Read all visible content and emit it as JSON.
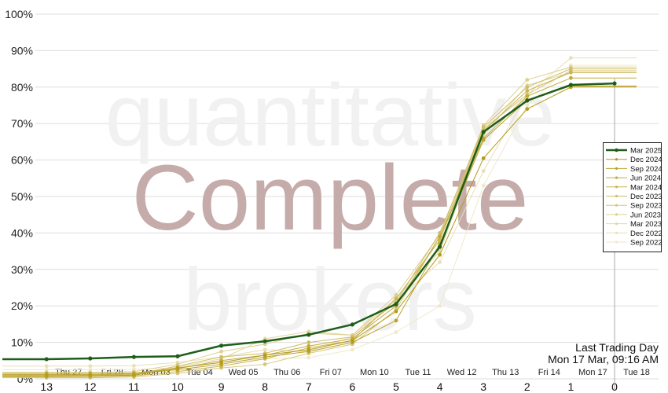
{
  "watermark": {
    "line1": "quantitative",
    "line2": "Complete",
    "line3": "brokers"
  },
  "annotation": {
    "line1": "Last Trading Day",
    "line2": "Mon 17 Mar, 09:16 AM"
  },
  "chart_data": {
    "type": "line",
    "title": "",
    "xlabel": "",
    "ylabel": "",
    "ylim": [
      0,
      100
    ],
    "yticks": [
      "0%",
      "10%",
      "20%",
      "30%",
      "40%",
      "50%",
      "60%",
      "70%",
      "80%",
      "90%",
      "100%"
    ],
    "x": [
      13,
      12,
      11,
      10,
      9,
      8,
      7,
      6,
      5,
      4,
      3,
      2,
      1,
      0
    ],
    "xtick_labels": [
      "13",
      "12",
      "11",
      "10",
      "9",
      "8",
      "7",
      "6",
      "5",
      "4",
      "3",
      "2",
      "1",
      "0"
    ],
    "date_labels": [
      "Thu 27",
      "Fri 28",
      "Mon 03",
      "Tue 04",
      "Wed 05",
      "Thu 06",
      "Fri 07",
      "Mon 10",
      "Tue 11",
      "Wed 12",
      "Thu 13",
      "Fri 14",
      "Mon 17",
      "Tue 18"
    ],
    "grid": true,
    "legend": "right",
    "series": [
      {
        "name": "Mar 2025",
        "color": "#1e5e1a",
        "values": [
          5.4,
          5.6,
          6.0,
          6.2,
          9.1,
          10.3,
          12.1,
          14.9,
          20.5,
          36.2,
          67.7,
          76.3,
          80.6,
          81.0
        ]
      },
      {
        "name": "Dec 2024",
        "color": "#b59c1c",
        "values": [
          0.8,
          0.9,
          1.0,
          3.0,
          4.5,
          6.5,
          8.0,
          10.5,
          18.5,
          34,
          60.5,
          74,
          80,
          null
        ]
      },
      {
        "name": "Sep 2024",
        "color": "#bba32a",
        "values": [
          1.2,
          1.2,
          1.4,
          2.5,
          4.0,
          6.0,
          7.5,
          10.0,
          16,
          37,
          65.5,
          76.5,
          80.3,
          null
        ]
      },
      {
        "name": "Jun 2024",
        "color": "#c2ab3c",
        "values": [
          1.5,
          1.5,
          1.6,
          2.8,
          5.0,
          6.5,
          9.0,
          11.0,
          20,
          39,
          66,
          77.5,
          82.5,
          null
        ]
      },
      {
        "name": "Mar 2024",
        "color": "#c9b552",
        "values": [
          0.5,
          0.5,
          0.8,
          2.0,
          3.5,
          5.5,
          8.5,
          10.5,
          22,
          38,
          68,
          79,
          84,
          null
        ]
      },
      {
        "name": "Dec 2023",
        "color": "#cfbd66",
        "values": [
          1.0,
          1.0,
          1.2,
          3.5,
          6.0,
          7.0,
          10.0,
          11.5,
          21,
          40,
          69,
          80,
          85,
          null
        ]
      },
      {
        "name": "Sep 2023",
        "color": "#d6c77c",
        "values": [
          0.3,
          0.3,
          0.5,
          1.5,
          3.0,
          4.0,
          7.0,
          9.5,
          19,
          39,
          68.5,
          78,
          84.5,
          null
        ]
      },
      {
        "name": "Jun 2023",
        "color": "#ddd090",
        "values": [
          1.8,
          1.8,
          2.0,
          4.0,
          7.5,
          9.5,
          12.5,
          12,
          23,
          39.5,
          69.5,
          82,
          85.5,
          null
        ]
      },
      {
        "name": "Mar 2023",
        "color": "#e3d8a4",
        "values": [
          0.7,
          0.8,
          1.0,
          3.2,
          5.5,
          11,
          13,
          12,
          22,
          35,
          67,
          80.5,
          84,
          null
        ]
      },
      {
        "name": "Dec 2022",
        "color": "#e9e0b8",
        "values": [
          3.5,
          3.5,
          3.6,
          4.5,
          6,
          8,
          7.5,
          11.5,
          21.5,
          32,
          57,
          78,
          88,
          null
        ]
      },
      {
        "name": "Sep 2022",
        "color": "#efe9cc",
        "values": [
          2.5,
          2.5,
          2.6,
          3.0,
          4.5,
          5.5,
          5.8,
          8.0,
          12.8,
          20,
          53,
          75,
          86,
          null
        ]
      }
    ]
  }
}
